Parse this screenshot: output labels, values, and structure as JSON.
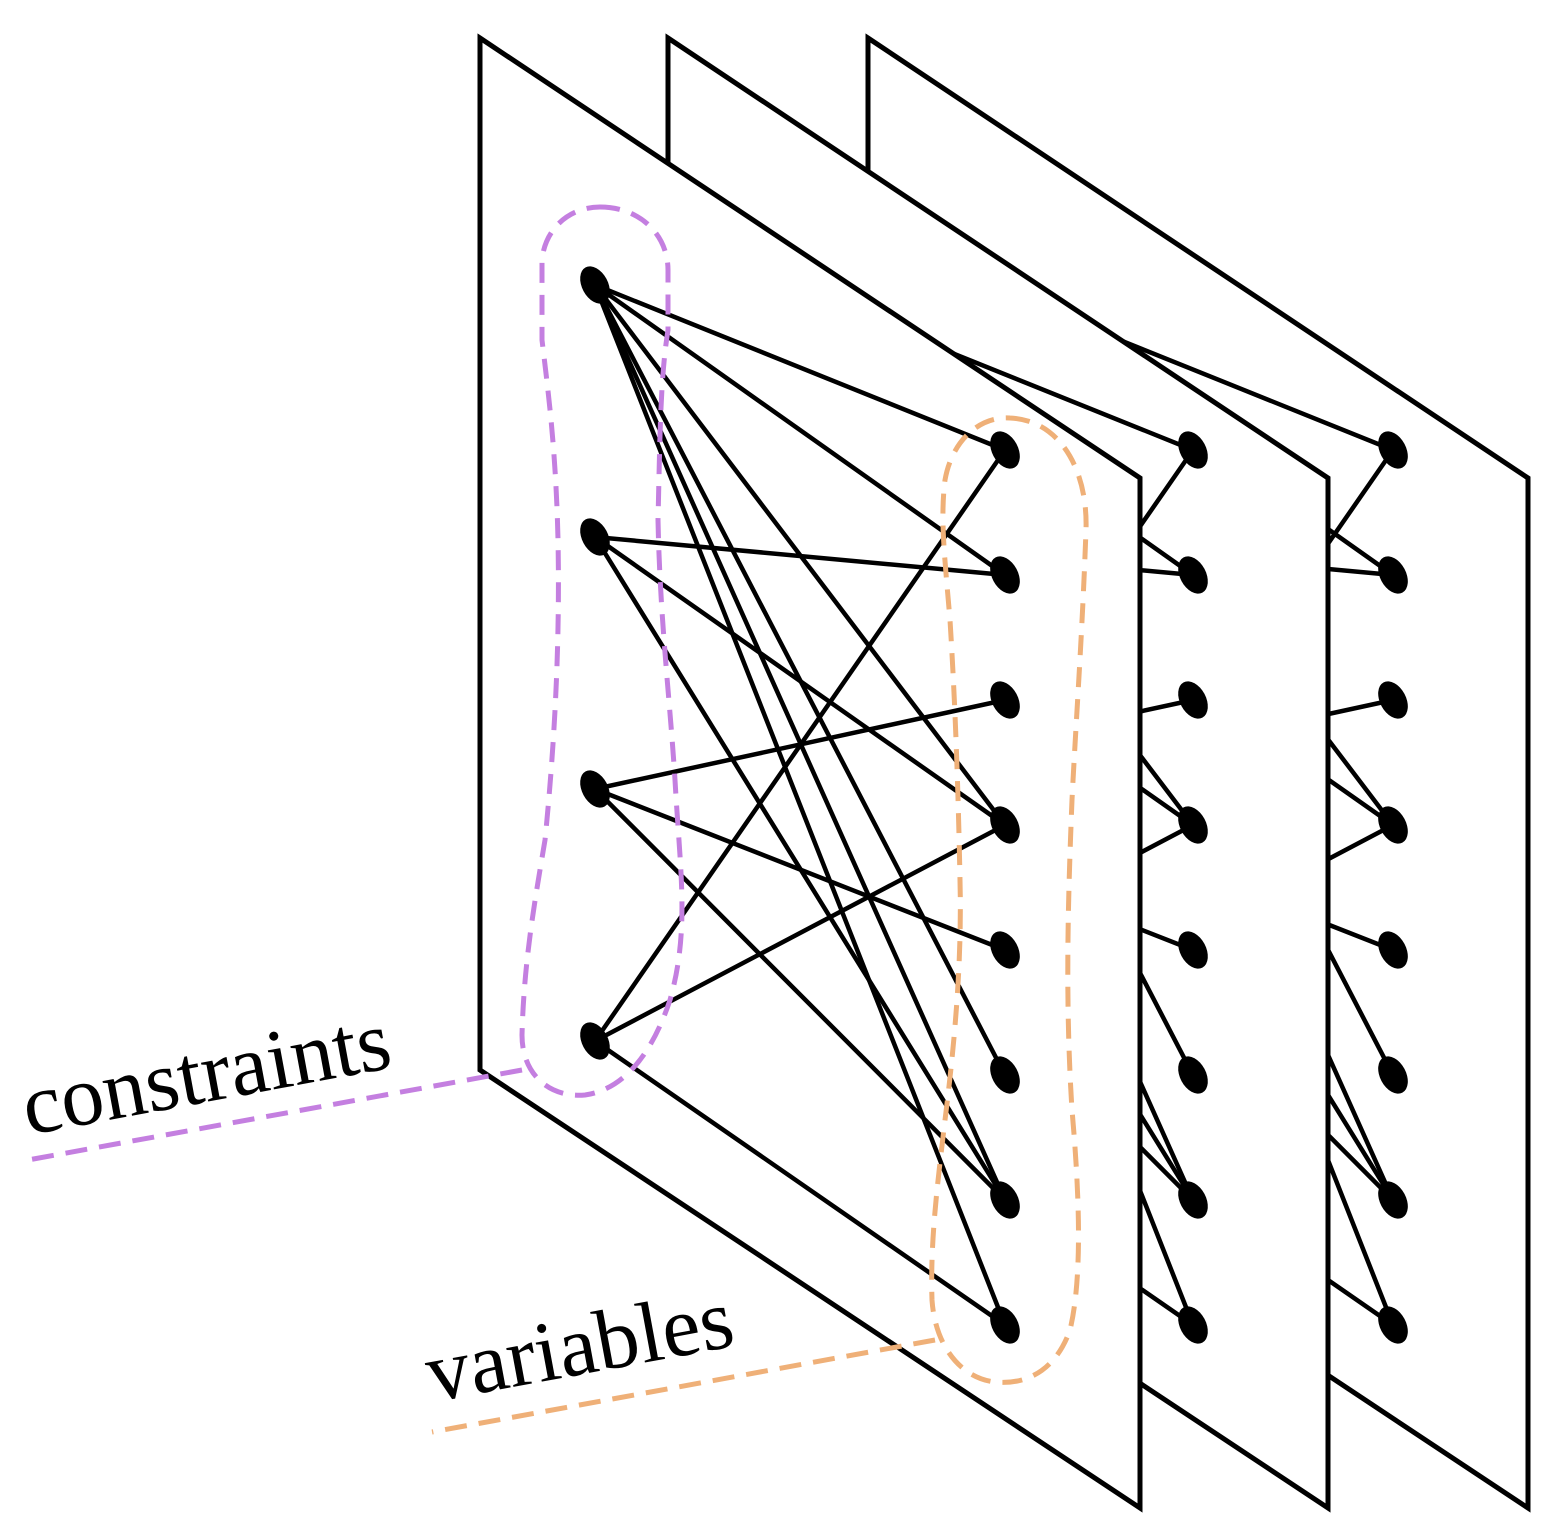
{
  "labels": {
    "constraints": "constraints",
    "variables": "variables"
  },
  "colors": {
    "constraints": "#c47fe0",
    "variables": "#efb078",
    "stroke": "#000000"
  },
  "graph": {
    "constraint_nodes": 4,
    "variable_nodes": 8,
    "edges": [
      [
        0,
        0
      ],
      [
        0,
        1
      ],
      [
        0,
        3
      ],
      [
        0,
        5
      ],
      [
        0,
        6
      ],
      [
        0,
        7
      ],
      [
        1,
        1
      ],
      [
        1,
        3
      ],
      [
        1,
        6
      ],
      [
        2,
        2
      ],
      [
        2,
        4
      ],
      [
        2,
        6
      ],
      [
        3,
        0
      ],
      [
        3,
        3
      ],
      [
        3,
        7
      ]
    ]
  },
  "layers": 3
}
